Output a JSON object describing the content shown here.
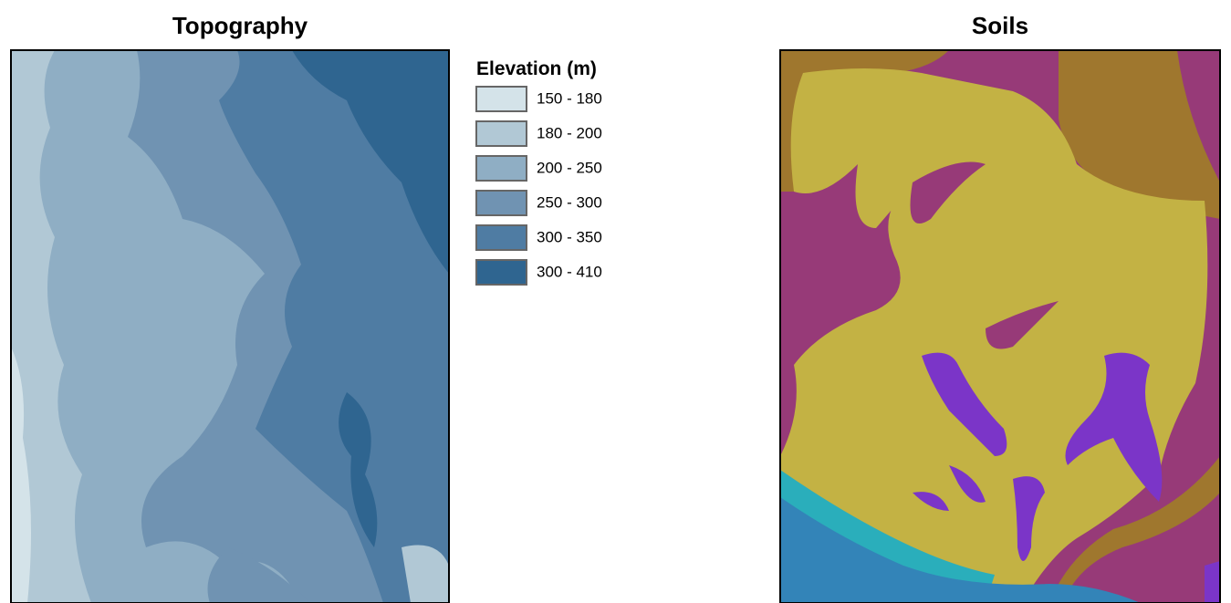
{
  "panels": [
    {
      "title": "Topography"
    },
    {
      "title": "Soils"
    }
  ],
  "legend": {
    "title": "Elevation (m)",
    "items": [
      {
        "label": "150 - 180",
        "color": "#d4e3e9"
      },
      {
        "label": "180 - 200",
        "color": "#b1c8d5"
      },
      {
        "label": "200 - 250",
        "color": "#8faec4"
      },
      {
        "label": "250 - 300",
        "color": "#7093b2"
      },
      {
        "label": "300 - 350",
        "color": "#4f7ca3"
      },
      {
        "label": "300 - 410",
        "color": "#2f6590"
      }
    ]
  }
}
